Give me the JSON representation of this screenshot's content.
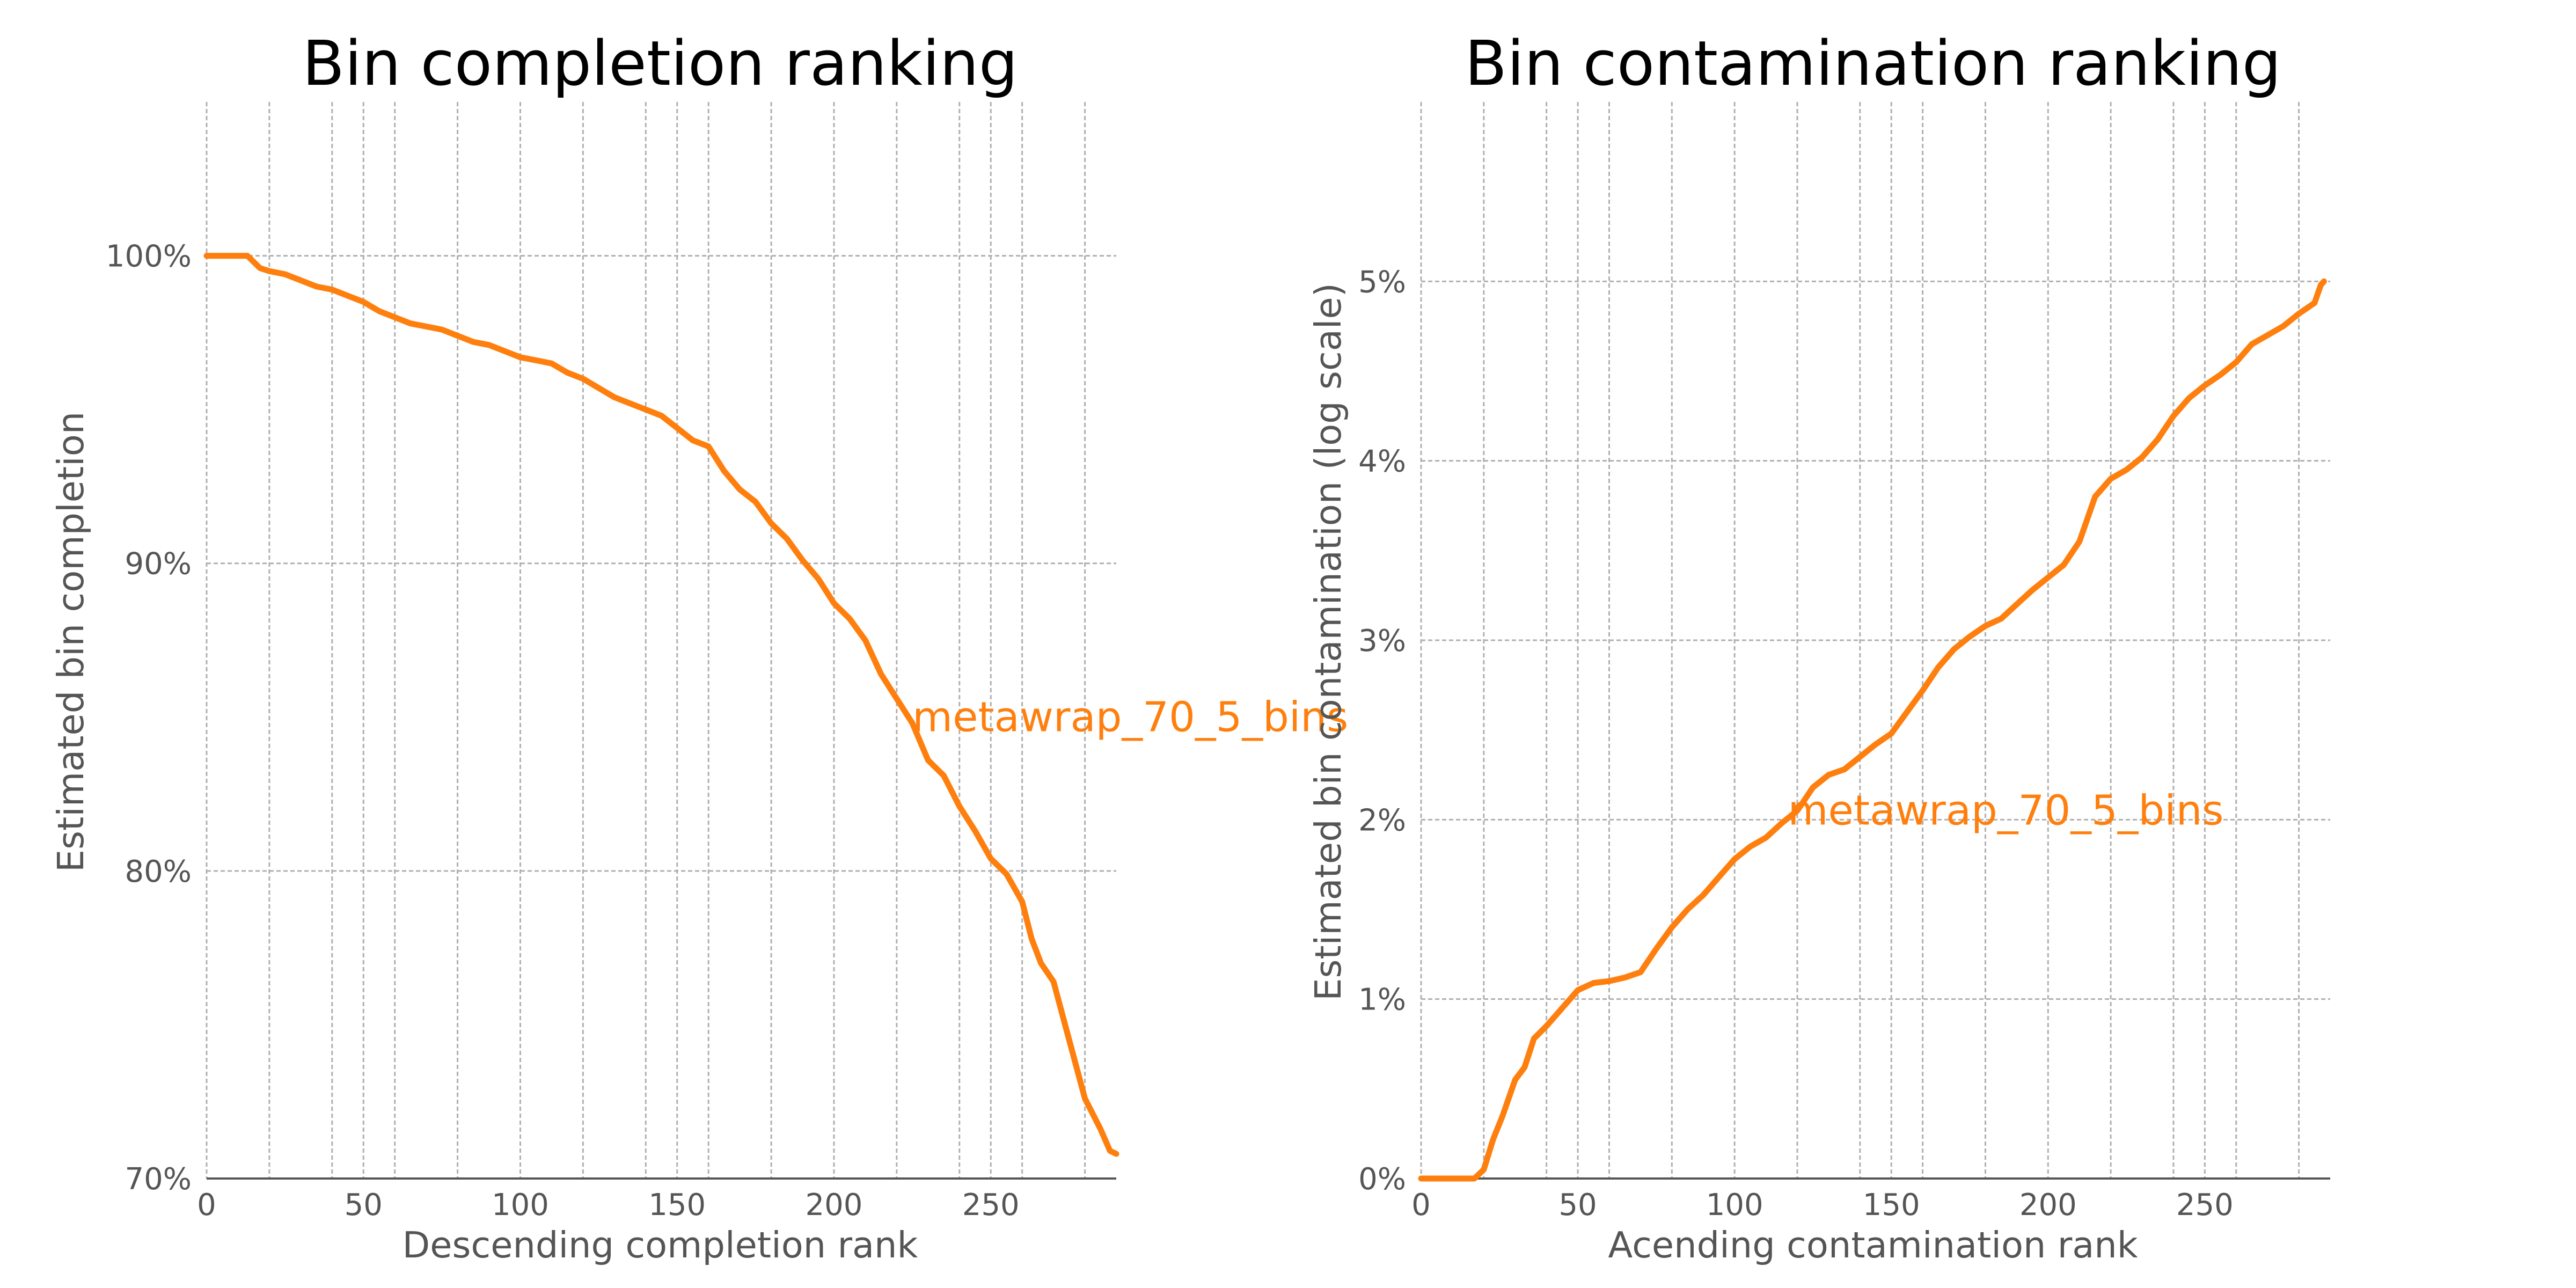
{
  "colors": {
    "series": "#ff7f0e",
    "text": "#555555",
    "grid": "#b0b0b0"
  },
  "chart_data": [
    {
      "type": "line",
      "title": "Bin completion ranking",
      "xlabel": "Descending completion rank",
      "ylabel": "Estimated bin completion",
      "xlim": [
        0,
        290
      ],
      "ylim": [
        70,
        105
      ],
      "xticks": [
        0,
        50,
        100,
        150,
        200,
        250
      ],
      "xtick_labels": [
        "0",
        "50",
        "100",
        "150",
        "200",
        "250"
      ],
      "yticks": [
        70,
        80,
        90,
        100
      ],
      "ytick_labels": [
        "70%",
        "80%",
        "90%",
        "100%"
      ],
      "grid": true,
      "annotation": {
        "text": "metawrap_70_5_bins",
        "x": 225,
        "y": 85
      },
      "series": [
        {
          "x": [
            0,
            13,
            17,
            20,
            25,
            30,
            35,
            40,
            45,
            50,
            55,
            60,
            65,
            70,
            75,
            80,
            85,
            90,
            95,
            100,
            105,
            110,
            115,
            120,
            125,
            130,
            135,
            140,
            145,
            150,
            155,
            160,
            165,
            170,
            175,
            180,
            185,
            190,
            195,
            200,
            205,
            210,
            215,
            220,
            225,
            230,
            235,
            240,
            245,
            250,
            255,
            260,
            263,
            266,
            270,
            275,
            280,
            285,
            288,
            290
          ],
          "y": [
            100,
            100,
            99.6,
            99.5,
            99.4,
            99.2,
            99.0,
            98.9,
            98.7,
            98.5,
            98.2,
            98.0,
            97.8,
            97.7,
            97.6,
            97.4,
            97.2,
            97.1,
            96.9,
            96.7,
            96.6,
            96.5,
            96.2,
            96.0,
            95.7,
            95.4,
            95.2,
            95.0,
            94.8,
            94.4,
            94.0,
            93.8,
            93.0,
            92.4,
            92.0,
            91.3,
            90.8,
            90.1,
            89.5,
            88.7,
            88.2,
            87.5,
            86.4,
            85.6,
            84.8,
            83.6,
            83.1,
            82.1,
            81.3,
            80.4,
            79.9,
            79.0,
            77.8,
            77.0,
            76.4,
            74.5,
            72.6,
            71.6,
            70.9,
            70.8
          ]
        }
      ]
    },
    {
      "type": "line",
      "title": "Bin contamination ranking",
      "xlabel": "Acending contamination rank",
      "ylabel": "Estimated bin contamination (log scale)",
      "xlim": [
        0,
        290
      ],
      "ylim": [
        0,
        6
      ],
      "xticks": [
        0,
        50,
        100,
        150,
        200,
        250
      ],
      "xtick_labels": [
        "0",
        "50",
        "100",
        "150",
        "200",
        "250"
      ],
      "yticks": [
        0,
        1,
        2,
        3,
        4,
        5
      ],
      "ytick_labels": [
        "0%",
        "1%",
        "2%",
        "3%",
        "4%",
        "5%"
      ],
      "grid": true,
      "annotation": {
        "text": "metawrap_70_5_bins",
        "x": 117,
        "y": 2.05
      },
      "series": [
        {
          "x": [
            0,
            17,
            20,
            23,
            26,
            30,
            33,
            36,
            40,
            45,
            50,
            55,
            60,
            65,
            70,
            75,
            80,
            85,
            90,
            95,
            100,
            105,
            110,
            115,
            120,
            125,
            130,
            135,
            140,
            145,
            150,
            155,
            160,
            165,
            170,
            175,
            180,
            185,
            190,
            195,
            200,
            205,
            210,
            215,
            220,
            225,
            230,
            235,
            240,
            245,
            250,
            255,
            260,
            265,
            270,
            275,
            280,
            285,
            287,
            288
          ],
          "y": [
            0,
            0,
            0.05,
            0.22,
            0.35,
            0.55,
            0.62,
            0.78,
            0.85,
            0.95,
            1.05,
            1.09,
            1.1,
            1.12,
            1.15,
            1.28,
            1.4,
            1.5,
            1.58,
            1.68,
            1.78,
            1.85,
            1.9,
            1.98,
            2.05,
            2.18,
            2.25,
            2.28,
            2.35,
            2.42,
            2.48,
            2.6,
            2.72,
            2.85,
            2.95,
            3.02,
            3.08,
            3.12,
            3.2,
            3.28,
            3.35,
            3.42,
            3.55,
            3.8,
            3.9,
            3.95,
            4.02,
            4.12,
            4.25,
            4.35,
            4.42,
            4.48,
            4.55,
            4.65,
            4.7,
            4.75,
            4.82,
            4.88,
            4.98,
            5.0
          ]
        }
      ]
    }
  ]
}
